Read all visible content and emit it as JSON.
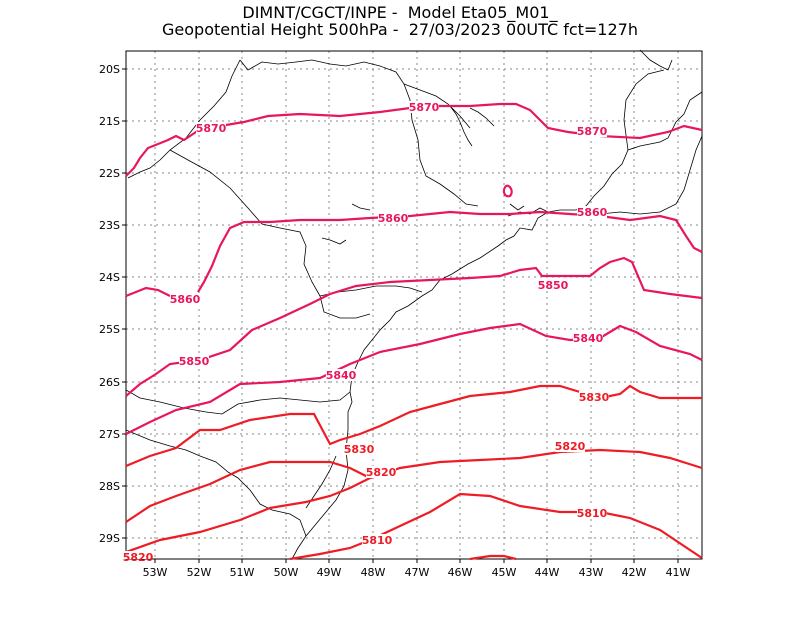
{
  "title": {
    "line1": "DIMNT/CGCT/INPE -  Model Eta05_M01_",
    "line2": "Geopotential Height 500hPa -  27/03/2023 00UTC fct=127h"
  },
  "axes": {
    "lat_labels": [
      "20S",
      "21S",
      "22S",
      "23S",
      "24S",
      "25S",
      "26S",
      "27S",
      "28S",
      "29S"
    ],
    "lon_labels": [
      "53W",
      "52W",
      "51W",
      "50W",
      "49W",
      "48W",
      "47W",
      "46W",
      "45W",
      "44W",
      "43W",
      "42W",
      "41W"
    ]
  },
  "colors": {
    "contour_high": "#e8175d",
    "contour_low": "#ee1c25",
    "coast": "#000000",
    "grid": "#888888"
  },
  "contours": [
    {
      "value": 5870,
      "labels": [
        "5870",
        "5870",
        "5870"
      ],
      "color": "#e8175d"
    },
    {
      "value": 5860,
      "labels": [
        "5860",
        "5860",
        "5860"
      ],
      "color": "#e8175d"
    },
    {
      "value": 5850,
      "labels": [
        "5850",
        "5850"
      ],
      "color": "#e8175d"
    },
    {
      "value": 5840,
      "labels": [
        "5840",
        "5840"
      ],
      "color": "#e8175d"
    },
    {
      "value": 5830,
      "labels": [
        "5830",
        "5830"
      ],
      "color": "#ee1c25"
    },
    {
      "value": 5820,
      "labels": [
        "5820",
        "5820",
        "5820"
      ],
      "color": "#ee1c25"
    },
    {
      "value": 5810,
      "labels": [
        "5810",
        "5810"
      ],
      "color": "#ee1c25"
    }
  ]
}
